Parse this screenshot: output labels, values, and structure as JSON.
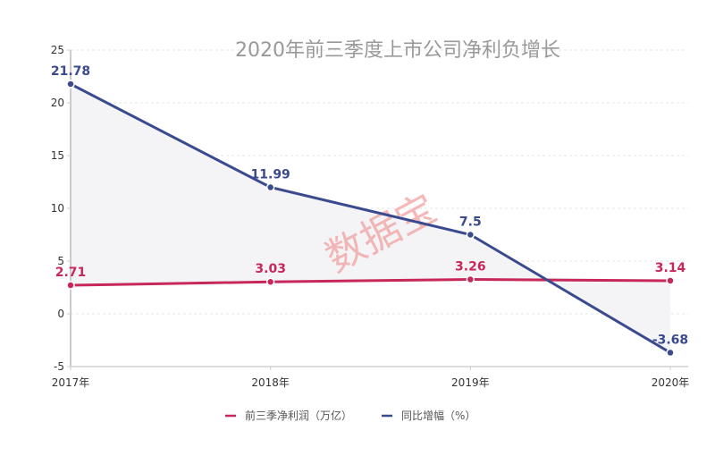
{
  "chart_data": {
    "type": "line",
    "title": "2020年前三季度上市公司净利负增长",
    "categories": [
      "2017年",
      "2018年",
      "2019年",
      "2020年"
    ],
    "ylim": [
      -5,
      25
    ],
    "yticks": [
      -5,
      0,
      5,
      10,
      15,
      20,
      25
    ],
    "grid": true,
    "legend_position": "bottom",
    "series": [
      {
        "name": "前三季净利润（万亿）",
        "values": [
          2.71,
          3.03,
          3.26,
          3.14
        ],
        "labels": [
          "2.71",
          "3.03",
          "3.26",
          "3.14"
        ],
        "color": "#c8275a"
      },
      {
        "name": "同比增幅（%）",
        "values": [
          21.78,
          11.99,
          7.5,
          -3.68
        ],
        "labels": [
          "21.78",
          "11.99",
          "7.5",
          "-3.68"
        ],
        "color": "#3a4a8f"
      }
    ],
    "watermark": "数据宝"
  }
}
